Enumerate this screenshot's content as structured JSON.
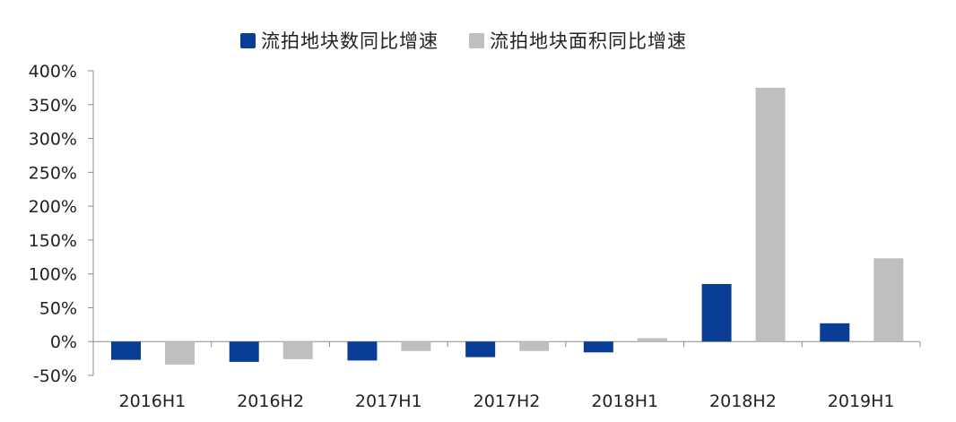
{
  "chart_data": {
    "type": "bar",
    "categories": [
      "2016H1",
      "2016H2",
      "2017H1",
      "2017H2",
      "2018H1",
      "2018H2",
      "2019H1"
    ],
    "series": [
      {
        "name": "流拍地块数同比增速",
        "color": "#0a3e96",
        "values": [
          -27,
          -30,
          -28,
          -23,
          -16,
          85,
          27
        ]
      },
      {
        "name": "流拍地块面积同比增速",
        "color": "#bfbfbf",
        "values": [
          -34,
          -26,
          -14,
          -14,
          5,
          375,
          123
        ]
      }
    ],
    "ylim": [
      -50,
      400
    ],
    "yticks": [
      -50,
      0,
      50,
      100,
      150,
      200,
      250,
      300,
      350,
      400
    ],
    "ytick_labels": [
      "-50%",
      "0%",
      "50%",
      "100%",
      "150%",
      "200%",
      "250%",
      "300%",
      "350%",
      "400%"
    ],
    "title": "",
    "xlabel": "",
    "ylabel": "",
    "grid": false,
    "legend_position": "top-center"
  }
}
